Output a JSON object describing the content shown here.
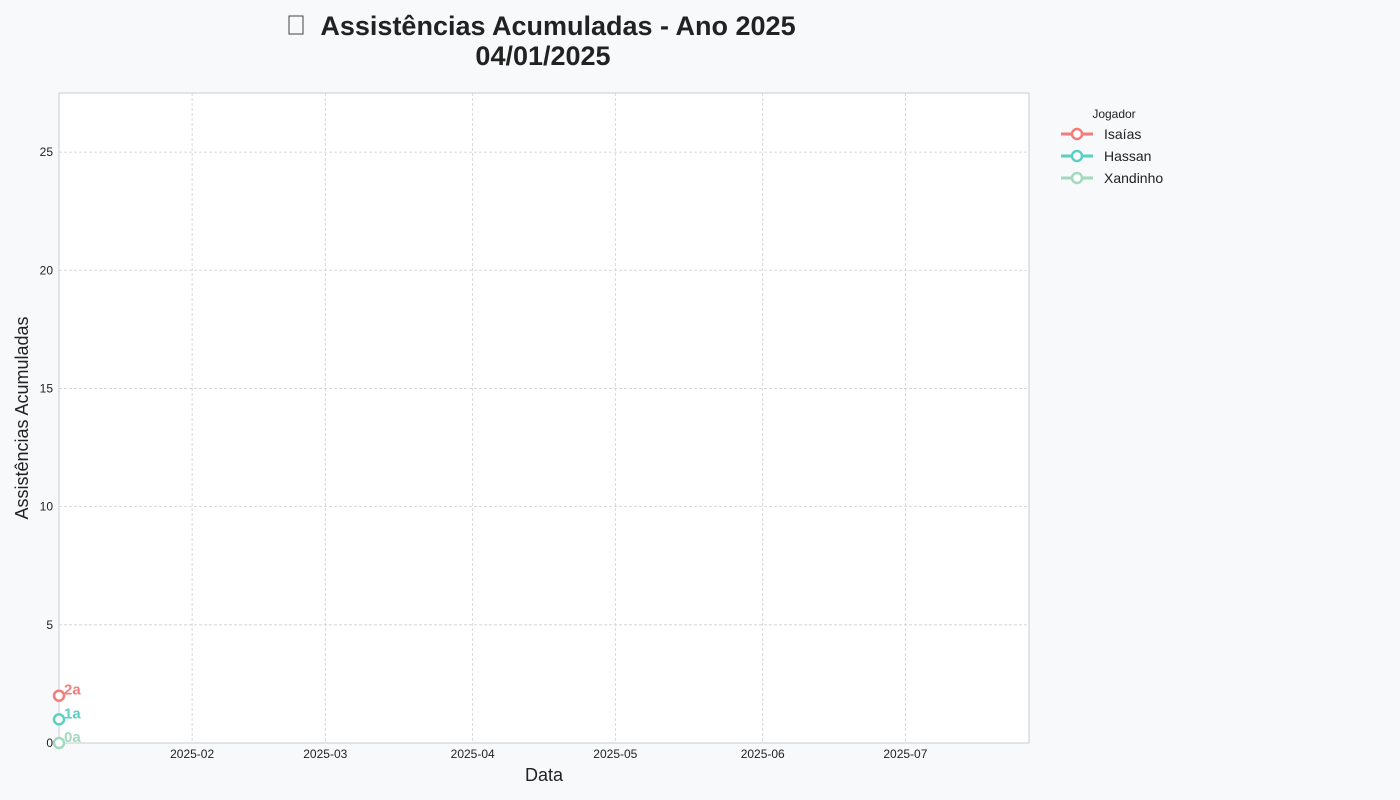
{
  "chart_data": {
    "type": "line",
    "title_icon": "chart-icon",
    "title_line1": "Assistências Acumuladas - Ano 2025",
    "title_line2": "04/01/2025",
    "xlabel": "Data",
    "ylabel": "Assistências Acumuladas",
    "xlim": [
      "2025-01-04",
      "2025-07-27"
    ],
    "ylim": [
      0,
      27.5
    ],
    "x_ticks": [
      "2025-02",
      "2025-03",
      "2025-04",
      "2025-05",
      "2025-06",
      "2025-07"
    ],
    "x_tick_dates": [
      "2025-02-01",
      "2025-03-01",
      "2025-04-01",
      "2025-05-01",
      "2025-06-01",
      "2025-07-01"
    ],
    "y_ticks": [
      0,
      5,
      10,
      15,
      20,
      25
    ],
    "grid": true,
    "legend": {
      "title": "Jogador",
      "placement": "outside-top-right"
    },
    "series": [
      {
        "name": "Isaías",
        "color": "#f47c7c",
        "x": [
          "2025-01-04"
        ],
        "y": [
          2
        ],
        "end_label": "2a"
      },
      {
        "name": "Hassan",
        "color": "#5ccfc5",
        "x": [
          "2025-01-04"
        ],
        "y": [
          1
        ],
        "end_label": "1a"
      },
      {
        "name": "Xandinho",
        "color": "#a2d9bf",
        "x": [
          "2025-01-04"
        ],
        "y": [
          0
        ],
        "end_label": "0a"
      }
    ]
  }
}
